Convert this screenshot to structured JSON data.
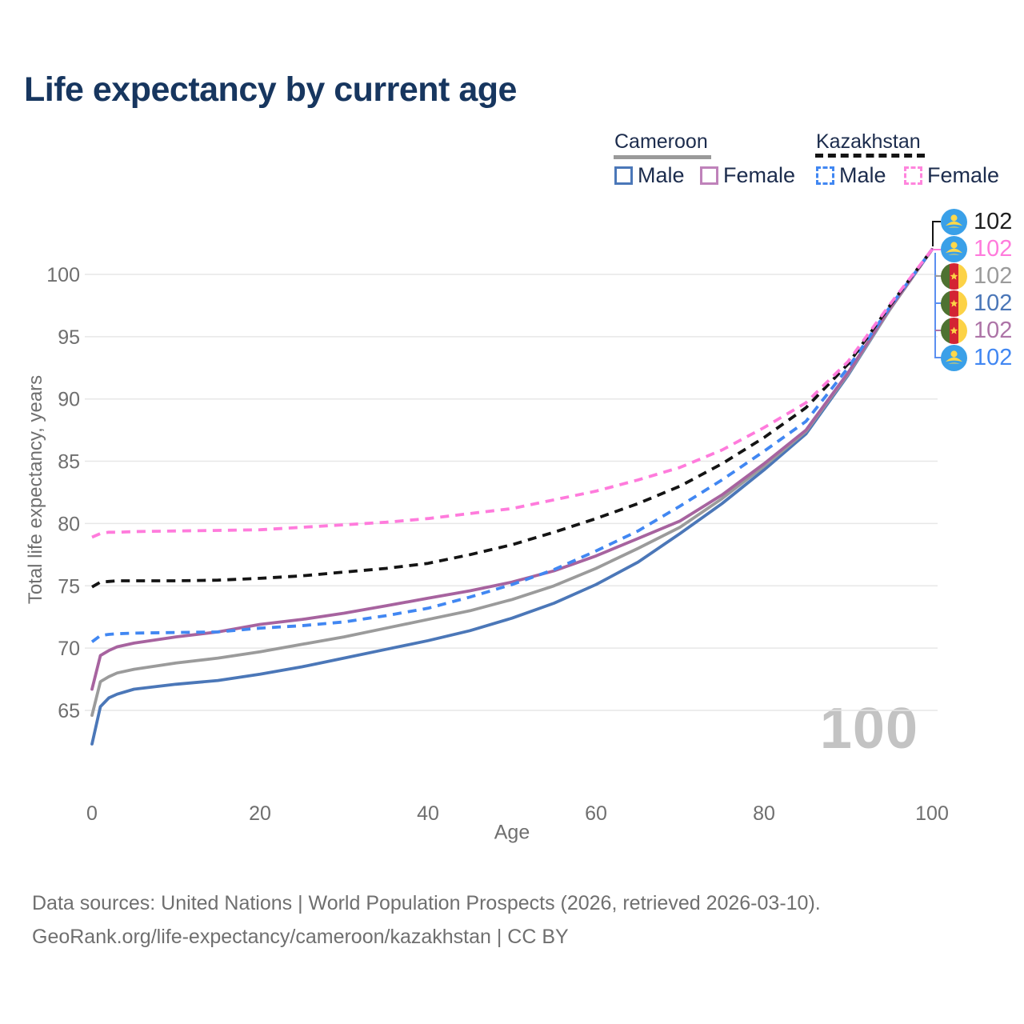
{
  "title": "Life expectancy by current age",
  "legend": {
    "groups": [
      {
        "label": "Cameroon",
        "line_style": "solid",
        "underline_color": "#9a9a9a",
        "items": [
          {
            "label": "Male",
            "color": "#4b77b8",
            "dashed": false
          },
          {
            "label": "Female",
            "color": "#bf82ba",
            "dashed": false
          }
        ]
      },
      {
        "label": "Kazakhstan",
        "line_style": "dashed",
        "underline_color": "#141414",
        "items": [
          {
            "label": "Male",
            "color": "#4187f2",
            "dashed": true
          },
          {
            "label": "Female",
            "color": "#ff85dd",
            "dashed": true
          }
        ]
      }
    ]
  },
  "chart_data": {
    "type": "line",
    "title": "Life expectancy by current age",
    "xlabel": "Age",
    "ylabel": "Total life expectancy, years",
    "xlim": [
      0,
      100
    ],
    "ylim": [
      62,
      103
    ],
    "x_ticks": [
      "0",
      "20",
      "40",
      "60",
      "80",
      "100"
    ],
    "y_ticks": [
      65,
      70,
      75,
      80,
      85,
      90,
      95,
      100
    ],
    "grid": "horizontal",
    "legend_position": "top-right",
    "age_watermark": "100",
    "x": [
      0,
      1,
      2,
      3,
      5,
      10,
      15,
      20,
      25,
      30,
      35,
      40,
      45,
      50,
      55,
      60,
      65,
      70,
      75,
      80,
      85,
      90,
      95,
      100
    ],
    "series": [
      {
        "name": "Cameroon Male",
        "country": "Cameroon",
        "sex": "Male",
        "color": "#4b77b8",
        "dash": false,
        "values": [
          62.3,
          65.3,
          66.0,
          66.3,
          66.7,
          67.1,
          67.4,
          67.9,
          68.5,
          69.2,
          69.9,
          70.6,
          71.4,
          72.4,
          73.6,
          75.1,
          76.9,
          79.2,
          81.6,
          84.3,
          87.2,
          91.9,
          97.2,
          102
        ]
      },
      {
        "name": "Cameroon Both sexes",
        "country": "Cameroon",
        "sex": "Both",
        "color": "#9b9b9b",
        "dash": false,
        "values": [
          64.6,
          67.3,
          67.7,
          68.0,
          68.3,
          68.8,
          69.2,
          69.7,
          70.3,
          70.9,
          71.6,
          72.3,
          73.0,
          73.9,
          75.0,
          76.4,
          78.0,
          79.7,
          82.0,
          84.6,
          87.4,
          92.0,
          97.2,
          102
        ]
      },
      {
        "name": "Cameroon Female",
        "country": "Cameroon",
        "sex": "Female",
        "color": "#a7639f",
        "dash": false,
        "values": [
          66.7,
          69.4,
          69.8,
          70.1,
          70.4,
          70.9,
          71.3,
          71.9,
          72.3,
          72.8,
          73.4,
          74.0,
          74.6,
          75.3,
          76.2,
          77.4,
          78.8,
          80.2,
          82.3,
          84.8,
          87.5,
          92.1,
          97.3,
          102
        ]
      },
      {
        "name": "Kazakhstan Male",
        "country": "Kazakhstan",
        "sex": "Male",
        "color": "#4187f2",
        "dash": true,
        "values": [
          70.5,
          71.0,
          71.1,
          71.15,
          71.2,
          71.25,
          71.3,
          71.6,
          71.8,
          72.1,
          72.6,
          73.2,
          74.1,
          75.1,
          76.3,
          77.8,
          79.4,
          81.4,
          83.5,
          85.8,
          88.2,
          92.5,
          97.4,
          102
        ]
      },
      {
        "name": "Kazakhstan Both sexes",
        "country": "Kazakhstan",
        "sex": "Both",
        "color": "#141414",
        "dash": true,
        "values": [
          74.9,
          75.3,
          75.35,
          75.4,
          75.4,
          75.4,
          75.45,
          75.6,
          75.8,
          76.1,
          76.4,
          76.8,
          77.5,
          78.3,
          79.3,
          80.4,
          81.6,
          83.0,
          84.8,
          86.9,
          89.3,
          92.8,
          97.5,
          102
        ]
      },
      {
        "name": "Kazakhstan Female",
        "country": "Kazakhstan",
        "sex": "Female",
        "color": "#ff7bdc",
        "dash": true,
        "values": [
          78.9,
          79.2,
          79.3,
          79.3,
          79.35,
          79.4,
          79.45,
          79.5,
          79.7,
          79.9,
          80.1,
          80.4,
          80.8,
          81.2,
          81.9,
          82.6,
          83.5,
          84.5,
          85.9,
          87.7,
          89.7,
          93.0,
          97.6,
          102
        ]
      }
    ],
    "end_labels": [
      {
        "flag": "kz",
        "country": "Kazakhstan",
        "series": "Both sexes",
        "value": "102",
        "color": "#1f1f1f"
      },
      {
        "flag": "kz",
        "country": "Kazakhstan",
        "series": "Female",
        "value": "102",
        "color": "#ff7bdc"
      },
      {
        "flag": "cm",
        "country": "Cameroon",
        "series": "Both sexes",
        "value": "102",
        "color": "#9b9b9b"
      },
      {
        "flag": "cm",
        "country": "Cameroon",
        "series": "Male",
        "value": "102",
        "color": "#4b77b8"
      },
      {
        "flag": "cm",
        "country": "Cameroon",
        "series": "Female",
        "value": "102",
        "color": "#ad74a7"
      },
      {
        "flag": "kz",
        "country": "Kazakhstan",
        "series": "Male",
        "value": "102",
        "color": "#4187f2"
      }
    ]
  },
  "footer": {
    "line1": "Data sources: United Nations | World Population Prospects (2026, retrieved 2026-03-10).",
    "line2": "GeoRank.org/life-expectancy/cameroon/kazakhstan | CC BY"
  }
}
